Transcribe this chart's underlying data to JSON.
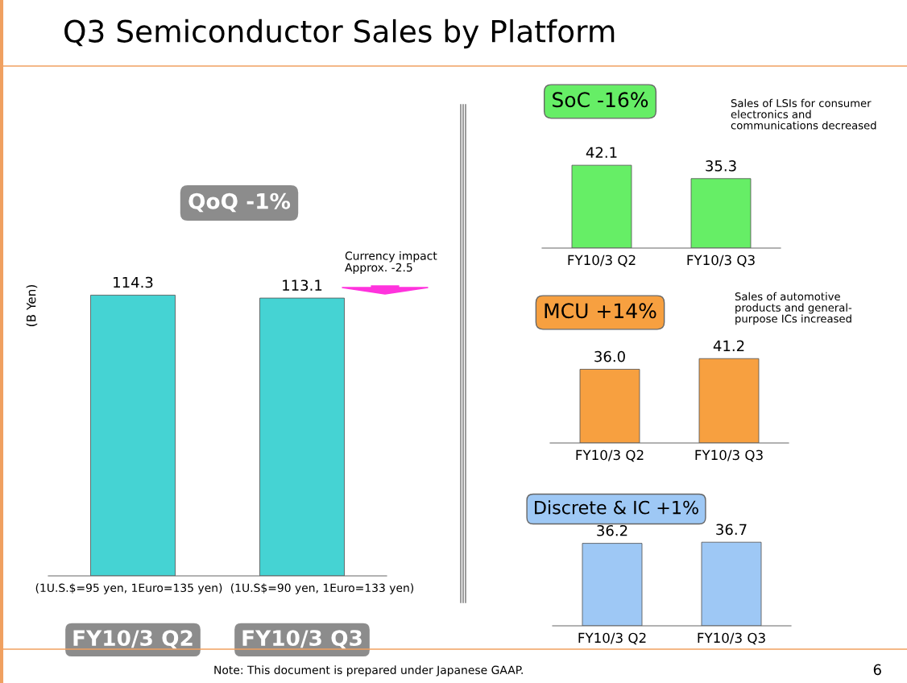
{
  "chart_data": [
    {
      "type": "bar",
      "title": "Q3 Semiconductor Sales by Platform",
      "subtitle": "QoQ -1%",
      "ylabel": "(B Yen)",
      "categories": [
        "FY10/3 Q2",
        "FY10/3 Q3"
      ],
      "series": [
        {
          "color": "#45d3d3",
          "values": [
            114.3,
            113.1
          ],
          "value_labels": [
            "114.3",
            "113.1"
          ]
        }
      ],
      "annotations": [
        "Currency impact\nApprox. -2.5",
        "(1U.S.$=95 yen, 1Euro=135 yen)",
        "(1U.S$=90 yen, 1Euro=133 yen)",
        "Note: This document is prepared under Japanese GAAP.",
        "6"
      ]
    },
    {
      "type": "bar",
      "title": "SoC -16%",
      "categories": [
        "FY10/3 Q2",
        "FY10/3 Q3"
      ],
      "series": [
        {
          "color": "#66ee66",
          "values": [
            42.1,
            35.3
          ],
          "value_labels": [
            "42.1",
            "35.3"
          ]
        }
      ],
      "annotations": [
        "Sales of LSIs for consumer\nelectronics and\ncommunications decreased"
      ]
    },
    {
      "type": "bar",
      "title": "MCU +14%",
      "categories": [
        "FY10/3 Q2",
        "FY10/3 Q3"
      ],
      "series": [
        {
          "color": "#f7a040",
          "values": [
            36.0,
            41.2
          ],
          "value_labels": [
            "36.0",
            "41.2"
          ]
        }
      ],
      "annotations": [
        "Sales of automotive\nproducts and general-\npurpose ICs increased"
      ]
    },
    {
      "type": "bar",
      "title": "Discrete & IC +1%",
      "categories": [
        "FY10/3 Q2",
        "FY10/3 Q3"
      ],
      "series": [
        {
          "color": "#9ec8f5",
          "values": [
            36.2,
            36.7
          ],
          "value_labels": [
            "36.2",
            "36.7"
          ]
        }
      ]
    }
  ]
}
